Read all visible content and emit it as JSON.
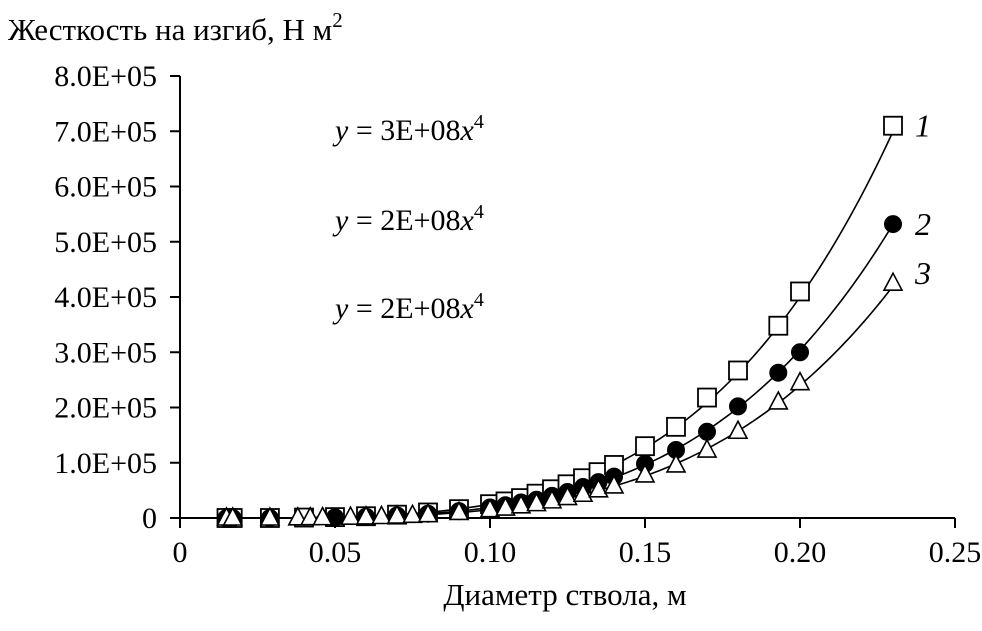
{
  "chart_data": {
    "type": "scatter",
    "title": "Жесткость на изгиб, Н м",
    "title_superscript": "2",
    "xlabel": "Диаметр ствола, м",
    "ylabel": "",
    "xlim": [
      0,
      0.25
    ],
    "ylim": [
      0,
      800000
    ],
    "x_ticks": [
      0,
      0.05,
      0.1,
      0.15,
      0.2,
      0.25
    ],
    "x_tick_labels": [
      "0",
      "0.05",
      "0.10",
      "0.15",
      "0.20",
      "0.25"
    ],
    "y_ticks": [
      0,
      100000,
      200000,
      300000,
      400000,
      500000,
      600000,
      700000,
      800000
    ],
    "y_tick_labels": [
      "0",
      "1.0E+05",
      "2.0E+05",
      "3.0E+05",
      "4.0E+05",
      "5.0E+05",
      "6.0E+05",
      "7.0E+05",
      "8.0E+05"
    ],
    "grid": false,
    "legend": "none",
    "equations": [
      {
        "text": "y = 3E+08x",
        "sup": "4"
      },
      {
        "text": "y = 2E+08x",
        "sup": "4"
      },
      {
        "text": "y = 2E+08x",
        "sup": "4"
      }
    ],
    "series": [
      {
        "label": "1",
        "marker": "square",
        "coef": 250000000.0,
        "x": [
          0.015,
          0.017,
          0.029,
          0.04,
          0.05,
          0.06,
          0.07,
          0.08,
          0.09,
          0.1,
          0.105,
          0.11,
          0.115,
          0.12,
          0.125,
          0.13,
          0.135,
          0.14,
          0.15,
          0.16,
          0.17,
          0.18,
          0.193,
          0.2,
          0.23
        ],
        "y": [
          0,
          0,
          0,
          800,
          1600,
          3200,
          6000,
          10000,
          16000,
          25000,
          30000,
          36000,
          44000,
          52000,
          61000,
          72000,
          83000,
          96000,
          130000,
          165000,
          218000,
          267000,
          348000,
          410000,
          710000
        ]
      },
      {
        "label": "2",
        "marker": "circle",
        "coef": 190000000.0,
        "x": [
          0.015,
          0.017,
          0.029,
          0.05,
          0.06,
          0.07,
          0.08,
          0.09,
          0.1,
          0.105,
          0.11,
          0.115,
          0.12,
          0.125,
          0.13,
          0.135,
          0.14,
          0.15,
          0.16,
          0.17,
          0.18,
          0.193,
          0.2,
          0.23
        ],
        "y": [
          0,
          0,
          0,
          1200,
          2400,
          4600,
          7800,
          12500,
          19000,
          23000,
          28000,
          33000,
          40000,
          47000,
          56000,
          65000,
          75000,
          98000,
          123000,
          156000,
          202000,
          263000,
          300000,
          532000
        ]
      },
      {
        "label": "3",
        "marker": "triangle",
        "coef": 150000000.0,
        "x": [
          0.015,
          0.017,
          0.029,
          0.038,
          0.042,
          0.046,
          0.055,
          0.06,
          0.065,
          0.07,
          0.075,
          0.08,
          0.09,
          0.1,
          0.105,
          0.11,
          0.115,
          0.12,
          0.125,
          0.13,
          0.135,
          0.14,
          0.15,
          0.16,
          0.17,
          0.18,
          0.193,
          0.2,
          0.23
        ],
        "y": [
          0,
          0,
          0,
          300,
          500,
          700,
          1500,
          2000,
          2700,
          3600,
          4800,
          6100,
          10000,
          15000,
          18000,
          22000,
          26000,
          31000,
          37000,
          43000,
          51000,
          58000,
          78000,
          96000,
          123000,
          157000,
          210000,
          245000,
          425000
        ]
      }
    ]
  }
}
